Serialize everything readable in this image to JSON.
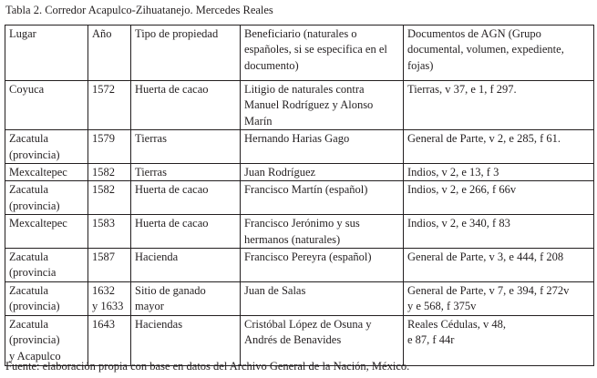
{
  "title": "Tabla 2. Corredor Acapulco-Zihuatanejo. Mercedes Reales",
  "columns": [
    "Lugar",
    "Año",
    "Tipo de propiedad",
    "Beneficiario (naturales o\nespañoles, si se especifica en el\ndocumento)",
    "Documentos de AGN (Grupo\ndocumental, volumen, expediente,\nfojas)"
  ],
  "rows": [
    [
      "Coyuca",
      "1572",
      "Huerta de cacao",
      "Litigio de naturales contra\nManuel Rodríguez y Alonso\nMarín",
      "Tierras, v 37, e 1, f 297."
    ],
    [
      "Zacatula\n(provincia)",
      "1579",
      "Tierras",
      "Hernando Harias Gago",
      "General de Parte, v 2, e 285, f 61."
    ],
    [
      "Mexcaltepec",
      "1582",
      "Tierras",
      "Juan Rodríguez",
      "Indios, v 2, e 13, f 3"
    ],
    [
      "Zacatula\n(provincia)",
      "1582",
      "Huerta de cacao",
      "Francisco Martín (español)",
      "Indios, v 2, e 266, f 66v"
    ],
    [
      "Mexcaltepec",
      "1583",
      "Huerta de cacao",
      "Francisco Jerónimo y sus\nhermanos (naturales)",
      "Indios, v 2, e 340, f 83"
    ],
    [
      "Zacatula\n(provincia",
      "1587",
      "Hacienda",
      "Francisco Pereyra (español)",
      "General de Parte, v 3, e 444, f 208"
    ],
    [
      "Zacatula\n(provincia)",
      "1632\ny 1633",
      "Sitio de ganado\nmayor",
      "Juan de Salas",
      "General de Parte, v 7, e 394, f 272v\ny e 568, f 375v"
    ],
    [
      "Zacatula\n(provincia)\ny Acapulco",
      "1643",
      "Haciendas",
      "Cristóbal López de Osuna y\nAndrés de Benavides",
      "Reales Cédulas, v 48,\ne 87, f 44r"
    ]
  ],
  "footer": "Fuente: elaboración propia con base en datos del Archivo General de la Nación, México."
}
